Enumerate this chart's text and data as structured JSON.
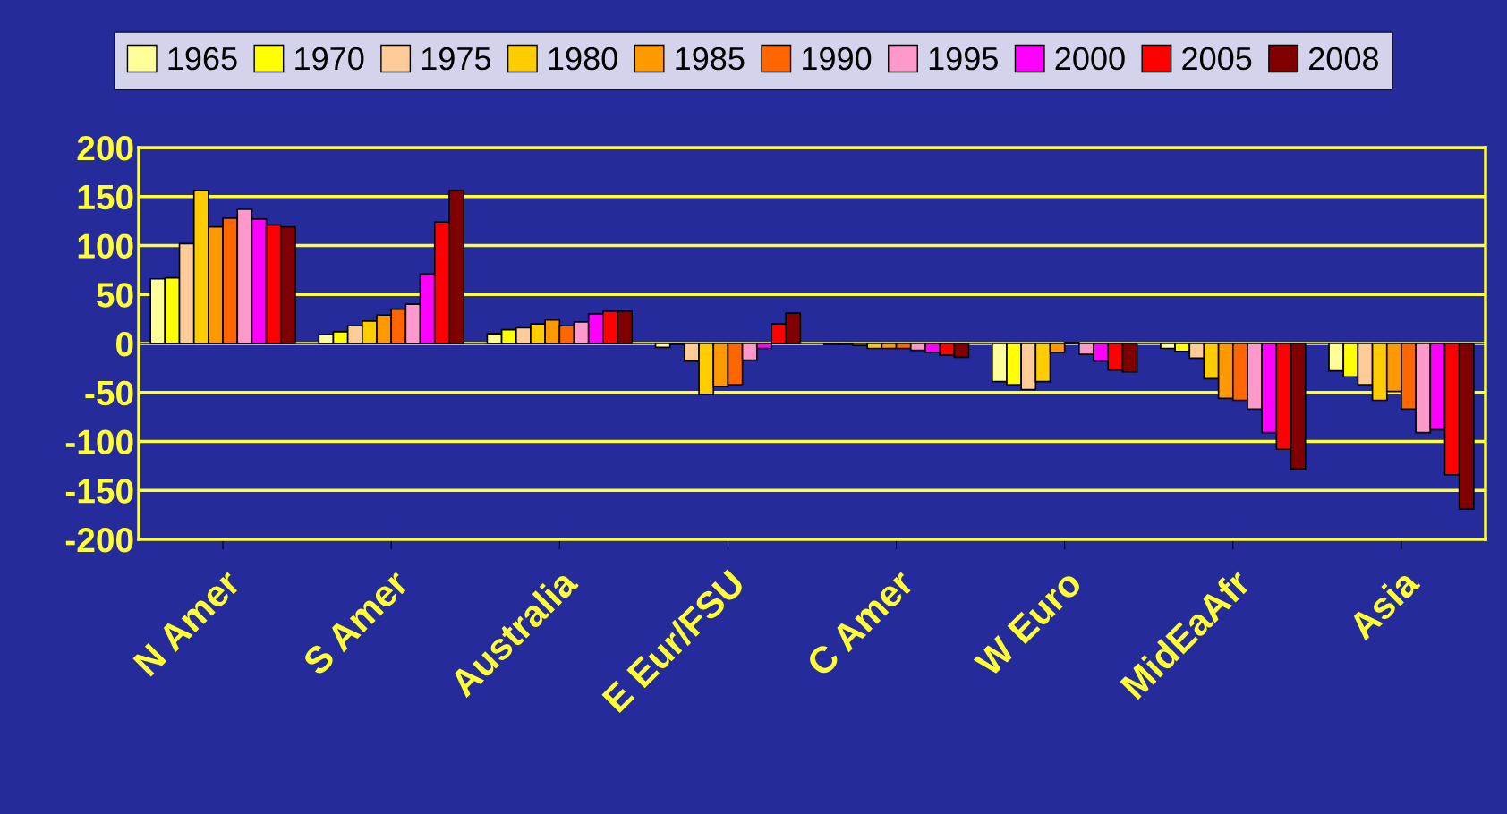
{
  "chart_data": {
    "type": "bar",
    "categories": [
      "N Amer",
      "S Amer",
      "Australia",
      "E Eur/FSU",
      "C Amer",
      "W Euro",
      "MidEaAfr",
      "Asia"
    ],
    "series": [
      {
        "name": "1965",
        "color": "#ffff99",
        "values": [
          66,
          9,
          10,
          -4,
          -1,
          -39,
          -5,
          -28
        ]
      },
      {
        "name": "1970",
        "color": "#ffff00",
        "values": [
          67,
          12,
          14,
          -1,
          -1,
          -42,
          -8,
          -34
        ]
      },
      {
        "name": "1975",
        "color": "#ffcc99",
        "values": [
          102,
          18,
          16,
          -18,
          -2,
          -47,
          -15,
          -42
        ]
      },
      {
        "name": "1980",
        "color": "#ffcc00",
        "values": [
          156,
          23,
          20,
          -52,
          -5,
          -39,
          -36,
          -58
        ]
      },
      {
        "name": "1985",
        "color": "#ff9900",
        "values": [
          119,
          29,
          24,
          -44,
          -5,
          -9,
          -56,
          -49
        ]
      },
      {
        "name": "1990",
        "color": "#ff6600",
        "values": [
          128,
          35,
          18,
          -42,
          -5,
          1,
          -58,
          -67
        ]
      },
      {
        "name": "1995",
        "color": "#ff99cc",
        "values": [
          137,
          40,
          22,
          -17,
          -7,
          -11,
          -67,
          -91
        ]
      },
      {
        "name": "2000",
        "color": "#ff00ff",
        "values": [
          127,
          71,
          30,
          -5,
          -9,
          -18,
          -91,
          -88
        ]
      },
      {
        "name": "2005",
        "color": "#ff0000",
        "values": [
          121,
          124,
          33,
          20,
          -12,
          -27,
          -108,
          -134
        ]
      },
      {
        "name": "2008",
        "color": "#800000",
        "values": [
          119,
          156,
          33,
          31,
          -14,
          -29,
          -128,
          -169
        ]
      }
    ],
    "ylim": [
      -200,
      200
    ],
    "yticks": [
      -200,
      -150,
      -100,
      -50,
      0,
      50,
      100,
      150,
      200
    ],
    "grid": "y",
    "legend": "top"
  }
}
